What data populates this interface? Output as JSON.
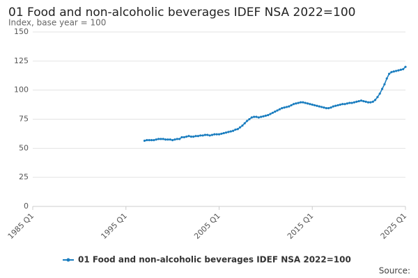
{
  "chart_data": {
    "type": "line",
    "title": "01 Food and non-alcoholic beverages IDEF NSA 2022=100",
    "subtitle": "Index, base year = 100",
    "source": "Source:",
    "categories": [
      "1997 Q1",
      "1997 Q2",
      "1997 Q3",
      "1997 Q4",
      "1998 Q1",
      "1998 Q2",
      "1998 Q3",
      "1998 Q4",
      "1999 Q1",
      "1999 Q2",
      "1999 Q3",
      "1999 Q4",
      "2000 Q1",
      "2000 Q2",
      "2000 Q3",
      "2000 Q4",
      "2001 Q1",
      "2001 Q2",
      "2001 Q3",
      "2001 Q4",
      "2002 Q1",
      "2002 Q2",
      "2002 Q3",
      "2002 Q4",
      "2003 Q1",
      "2003 Q2",
      "2003 Q3",
      "2003 Q4",
      "2004 Q1",
      "2004 Q2",
      "2004 Q3",
      "2004 Q4",
      "2005 Q1",
      "2005 Q2",
      "2005 Q3",
      "2005 Q4",
      "2006 Q1",
      "2006 Q2",
      "2006 Q3",
      "2006 Q4",
      "2007 Q1",
      "2007 Q2",
      "2007 Q3",
      "2007 Q4",
      "2008 Q1",
      "2008 Q2",
      "2008 Q3",
      "2008 Q4",
      "2009 Q1",
      "2009 Q2",
      "2009 Q3",
      "2009 Q4",
      "2010 Q1",
      "2010 Q2",
      "2010 Q3",
      "2010 Q4",
      "2011 Q1",
      "2011 Q2",
      "2011 Q3",
      "2011 Q4",
      "2012 Q1",
      "2012 Q2",
      "2012 Q3",
      "2012 Q4",
      "2013 Q1",
      "2013 Q2",
      "2013 Q3",
      "2013 Q4",
      "2014 Q1",
      "2014 Q2",
      "2014 Q3",
      "2014 Q4",
      "2015 Q1",
      "2015 Q2",
      "2015 Q3",
      "2015 Q4",
      "2016 Q1",
      "2016 Q2",
      "2016 Q3",
      "2016 Q4",
      "2017 Q1",
      "2017 Q2",
      "2017 Q3",
      "2017 Q4",
      "2018 Q1",
      "2018 Q2",
      "2018 Q3",
      "2018 Q4",
      "2019 Q1",
      "2019 Q2",
      "2019 Q3",
      "2019 Q4",
      "2020 Q1",
      "2020 Q2",
      "2020 Q3",
      "2020 Q4",
      "2021 Q1",
      "2021 Q2",
      "2021 Q3",
      "2021 Q4",
      "2022 Q1",
      "2022 Q2",
      "2022 Q3",
      "2022 Q4",
      "2023 Q1",
      "2023 Q2",
      "2023 Q3",
      "2023 Q4",
      "2024 Q1",
      "2024 Q2",
      "2024 Q3",
      "2024 Q4",
      "2025 Q1"
    ],
    "series": [
      {
        "name": "01 Food and non-alcoholic beverages IDEF NSA 2022=100",
        "color": "#1a7dbf",
        "values": [
          56.5,
          57,
          57,
          57,
          57,
          57.5,
          58,
          58,
          58,
          57.5,
          57.5,
          57.5,
          57,
          57.5,
          58,
          58,
          59.5,
          59.5,
          60,
          60.5,
          60,
          60,
          60.5,
          60.5,
          61,
          61,
          61.5,
          61.5,
          61,
          61.5,
          62,
          62,
          62,
          62.5,
          63,
          63.5,
          64,
          64.5,
          65,
          66,
          66.5,
          68,
          69.5,
          71.5,
          73.5,
          75,
          76.5,
          77,
          77,
          76.5,
          77,
          77.5,
          78,
          78.5,
          79.5,
          80.5,
          81.5,
          82.5,
          83.5,
          84.5,
          85,
          85.5,
          86,
          87,
          88,
          88.5,
          89,
          89.5,
          89.5,
          89,
          88.5,
          88,
          87.5,
          87,
          86.5,
          86,
          85.5,
          85,
          84.5,
          84.5,
          85,
          86,
          86.5,
          87,
          87.5,
          88,
          88,
          88.5,
          89,
          89,
          89.5,
          90,
          90.5,
          91,
          90.5,
          90,
          89.5,
          89.5,
          90,
          91.5,
          94,
          97,
          101,
          105,
          110,
          114,
          115.5,
          116,
          116.5,
          117,
          117.5,
          118,
          120
        ]
      }
    ],
    "xlim": [
      "1985 Q1",
      "2025 Q1"
    ],
    "xticks": [
      "1985 Q1",
      "1995 Q1",
      "2005 Q1",
      "2015 Q1",
      "2025 Q1"
    ],
    "ylim": [
      0,
      150
    ],
    "yticks": [
      0,
      25,
      50,
      75,
      100,
      125,
      150
    ],
    "grid": true,
    "legend": "bottom"
  }
}
